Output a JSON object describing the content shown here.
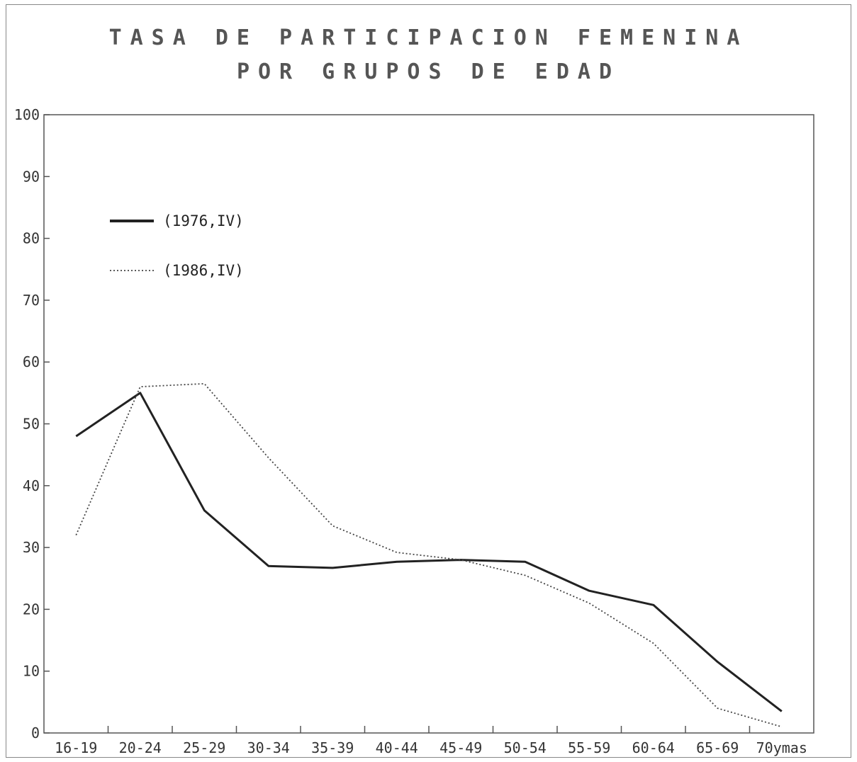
{
  "chart_data": {
    "type": "line",
    "title": "TASA DE PARTICIPACION FEMENINA",
    "subtitle": "POR GRUPOS DE EDAD",
    "xlabel": "",
    "ylabel": "",
    "categories": [
      "16-19",
      "20-24",
      "25-29",
      "30-34",
      "35-39",
      "40-44",
      "45-49",
      "50-54",
      "55-59",
      "60-64",
      "65-69",
      "70ymas"
    ],
    "y_ticks": [
      "0",
      "10",
      "20",
      "30",
      "40",
      "50",
      "60",
      "70",
      "80",
      "90",
      "100"
    ],
    "ylim": [
      0,
      100
    ],
    "grid": false,
    "legend_position": "top-left",
    "series": [
      {
        "name": "(1976,IV)",
        "style": "solid",
        "color": "#222222",
        "values": [
          48,
          55,
          36,
          27,
          26.7,
          27.7,
          28,
          27.7,
          23,
          20.7,
          11.5,
          3.5
        ]
      },
      {
        "name": "(1986,IV)",
        "style": "dotted",
        "color": "#444444",
        "values": [
          32,
          56,
          56.5,
          44.5,
          33.5,
          29.2,
          28,
          25.5,
          21,
          14.5,
          4,
          1
        ]
      }
    ]
  }
}
